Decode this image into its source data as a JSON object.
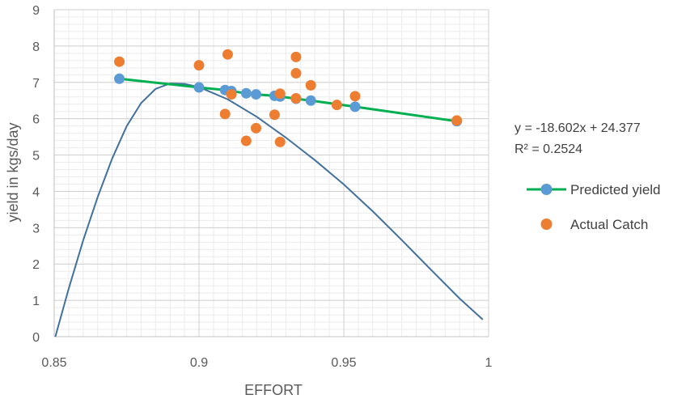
{
  "chart_data": {
    "type": "scatter",
    "xlabel": "EFFORT",
    "ylabel": "yield in kgs/day",
    "xlim": [
      0.85,
      1
    ],
    "ylim": [
      0,
      9
    ],
    "x_ticks": [
      0.85,
      0.9,
      0.95,
      1
    ],
    "x_tick_labels": [
      "0.85",
      "0.9",
      "0.95",
      "1"
    ],
    "y_ticks": [
      0,
      1,
      2,
      3,
      4,
      5,
      6,
      7,
      8,
      9
    ],
    "y_tick_labels": [
      "0",
      "1",
      "2",
      "3",
      "4",
      "5",
      "6",
      "7",
      "8",
      "9"
    ],
    "grid": "major and minor gridlines",
    "legend_position": "right",
    "series": [
      {
        "name": "Predicted yield",
        "kind": "line-with-markers",
        "color": "#5B9BD5",
        "line_color": "#00B050",
        "x": [
          0.8725,
          0.9,
          0.909,
          0.9112,
          0.9163,
          0.9197,
          0.9261,
          0.928,
          0.9335,
          0.9386,
          0.9539,
          0.989
        ],
        "y": [
          7.1,
          6.86,
          6.79,
          6.76,
          6.7,
          6.67,
          6.63,
          6.61,
          6.55,
          6.5,
          6.33,
          5.93
        ]
      },
      {
        "name": "Actual Catch",
        "kind": "scatter",
        "color": "#ED7D31",
        "x": [
          0.8725,
          0.9,
          0.909,
          0.9099,
          0.9112,
          0.9163,
          0.9197,
          0.9261,
          0.928,
          0.928,
          0.9335,
          0.9335,
          0.9335,
          0.9386,
          0.9476,
          0.9539,
          0.989
        ],
        "y": [
          7.57,
          7.47,
          6.13,
          7.77,
          6.67,
          5.39,
          5.74,
          6.11,
          5.36,
          6.69,
          7.7,
          7.25,
          6.56,
          6.92,
          6.38,
          6.62,
          5.95
        ]
      },
      {
        "name": "",
        "kind": "curve",
        "color": "#41719C",
        "x": [
          0.8504,
          0.855,
          0.86,
          0.865,
          0.87,
          0.875,
          0.88,
          0.885,
          0.89,
          0.895,
          0.9,
          0.91,
          0.92,
          0.93,
          0.94,
          0.95,
          0.96,
          0.97,
          0.98,
          0.99,
          0.998
        ],
        "y": [
          0.0,
          1.32,
          2.65,
          3.84,
          4.9,
          5.79,
          6.43,
          6.82,
          6.97,
          6.96,
          6.87,
          6.53,
          6.05,
          5.48,
          4.86,
          4.19,
          3.45,
          2.66,
          1.85,
          1.05,
          0.47
        ]
      }
    ],
    "trendline_equation": "y = -18.602x + 24.377",
    "r_squared_label": "R² = 0.2524"
  }
}
